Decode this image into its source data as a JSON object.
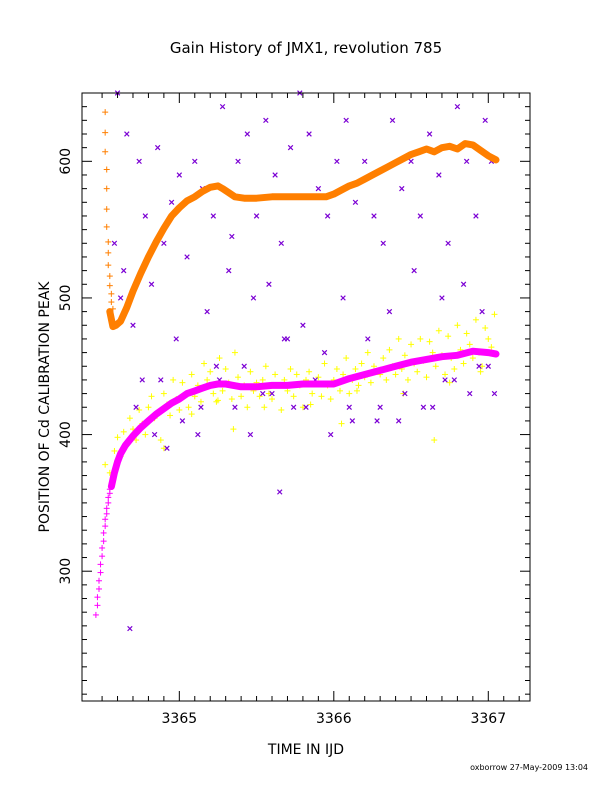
{
  "chart_data": {
    "type": "scatter",
    "title": "Gain History of JMX1, revolution 785",
    "xlabel": "TIME IN IJD",
    "ylabel": "POSITION OF Cd CALIBRATION PEAK",
    "xlim": [
      3364.37,
      3367.27
    ],
    "ylim": [
      205,
      650
    ],
    "xticks": [
      3365,
      3366,
      3367
    ],
    "xtick_labels": [
      "3365",
      "3366",
      "3367"
    ],
    "yticks": [
      300,
      400,
      500,
      600
    ],
    "ytick_labels": [
      "300",
      "400",
      "500",
      "600"
    ],
    "grid": false,
    "legend": "none",
    "colors": {
      "orange": "#ff7f00",
      "magenta": "#ff00ff",
      "yellow": "#ffff00",
      "purple": "#7b00d4",
      "axis": "#000000"
    },
    "series": [
      {
        "marker": "line",
        "color": "#ff7f00",
        "x": [
          3364.55,
          3364.57,
          3364.59,
          3364.62,
          3364.66,
          3364.7,
          3364.75,
          3364.8,
          3364.85,
          3364.9,
          3364.95,
          3365.0,
          3365.05,
          3365.1,
          3365.15,
          3365.2,
          3365.25,
          3365.28,
          3365.32,
          3365.36,
          3365.42,
          3365.5,
          3365.6,
          3365.7,
          3365.8,
          3365.9,
          3365.95,
          3366.0,
          3366.05,
          3366.1,
          3366.15,
          3366.2,
          3366.25,
          3366.3,
          3366.35,
          3366.4,
          3366.45,
          3366.5,
          3366.55,
          3366.6,
          3366.65,
          3366.7,
          3366.75,
          3366.8,
          3366.85,
          3366.9,
          3366.95,
          3367.0,
          3367.05
        ],
        "y": [
          490,
          479,
          480,
          483,
          493,
          505,
          518,
          530,
          541,
          551,
          560,
          566,
          571,
          574,
          578,
          581,
          582,
          580,
          577,
          574,
          573,
          573,
          574,
          574,
          574,
          574,
          574,
          576,
          579,
          582,
          584,
          587,
          590,
          593,
          596,
          599,
          602,
          605,
          607,
          609,
          607,
          610,
          611,
          609,
          613,
          612,
          608,
          604,
          601
        ]
      },
      {
        "marker": "plus",
        "color": "#ff7f00",
        "x": [
          3364.52,
          3364.52,
          3364.52,
          3364.53,
          3364.53,
          3364.53,
          3364.53,
          3364.54,
          3364.54,
          3364.54,
          3364.55,
          3364.55,
          3364.56,
          3364.56,
          3364.57
        ],
        "y": [
          636,
          621,
          607,
          594,
          580,
          565,
          552,
          541,
          533,
          524,
          516,
          509,
          503,
          497,
          492
        ]
      },
      {
        "marker": "line",
        "color": "#ff00ff",
        "x": [
          3364.56,
          3364.58,
          3364.6,
          3364.62,
          3364.65,
          3364.7,
          3364.75,
          3364.8,
          3364.85,
          3364.9,
          3364.95,
          3365.0,
          3365.05,
          3365.1,
          3365.15,
          3365.2,
          3365.25,
          3365.3,
          3365.35,
          3365.4,
          3365.5,
          3365.6,
          3365.7,
          3365.8,
          3365.9,
          3366.0,
          3366.1,
          3366.2,
          3366.3,
          3366.4,
          3366.5,
          3366.6,
          3366.7,
          3366.8,
          3366.9,
          3367.0,
          3367.05
        ],
        "y": [
          362,
          372,
          380,
          386,
          392,
          399,
          405,
          410,
          415,
          419,
          423,
          426,
          430,
          432,
          434,
          436,
          437,
          437,
          436,
          435,
          435,
          436,
          436,
          437,
          437,
          437,
          441,
          444,
          447,
          450,
          453,
          455,
          457,
          458,
          461,
          460,
          459
        ]
      },
      {
        "marker": "plus",
        "color": "#ff00ff",
        "x": [
          3364.46,
          3364.47,
          3364.47,
          3364.48,
          3364.48,
          3364.49,
          3364.49,
          3364.5,
          3364.5,
          3364.51,
          3364.51,
          3364.52,
          3364.52,
          3364.53,
          3364.53,
          3364.54,
          3364.54,
          3364.55,
          3364.55
        ],
        "y": [
          268,
          275,
          281,
          287,
          293,
          299,
          305,
          311,
          317,
          322,
          328,
          333,
          338,
          342,
          346,
          350,
          354,
          357,
          360
        ]
      },
      {
        "marker": "plus",
        "color": "#ffff00",
        "x": [
          3364.52,
          3364.55,
          3364.58,
          3364.6,
          3364.62,
          3364.64,
          3364.66,
          3364.68,
          3364.7,
          3364.72,
          3364.74,
          3364.76,
          3364.78,
          3364.8,
          3364.82,
          3364.84,
          3364.86,
          3364.88,
          3364.9,
          3364.92,
          3364.94,
          3364.96,
          3364.98,
          3365.0,
          3365.02,
          3365.04,
          3365.06,
          3365.08,
          3365.1,
          3365.12,
          3365.14,
          3365.16,
          3365.18,
          3365.2,
          3365.22,
          3365.24,
          3365.26,
          3365.28,
          3365.3,
          3365.32,
          3365.34,
          3365.36,
          3365.38,
          3365.4,
          3365.42,
          3365.44,
          3365.46,
          3365.48,
          3365.5,
          3365.52,
          3365.54,
          3365.56,
          3365.58,
          3365.6,
          3365.62,
          3365.64,
          3365.66,
          3365.68,
          3365.7,
          3365.72,
          3365.74,
          3365.76,
          3365.78,
          3365.8,
          3365.82,
          3365.84,
          3365.86,
          3365.88,
          3365.9,
          3365.92,
          3365.94,
          3365.96,
          3365.98,
          3366.0,
          3366.02,
          3366.04,
          3366.06,
          3366.08,
          3366.1,
          3366.12,
          3366.14,
          3366.16,
          3366.18,
          3366.2,
          3366.22,
          3366.24,
          3366.26,
          3366.28,
          3366.3,
          3366.32,
          3366.34,
          3366.36,
          3366.38,
          3366.4,
          3366.42,
          3366.44,
          3366.46,
          3366.48,
          3366.5,
          3366.52,
          3366.54,
          3366.56,
          3366.58,
          3366.6,
          3366.62,
          3366.64,
          3366.66,
          3366.68,
          3366.7,
          3366.72,
          3366.74,
          3366.76,
          3366.78,
          3366.8,
          3366.82,
          3366.84,
          3366.86,
          3366.88,
          3366.9,
          3366.92,
          3366.94,
          3366.96,
          3366.98,
          3367.0,
          3367.02,
          3367.04,
          3365.08,
          3365.25,
          3365.55,
          3365.85,
          3366.15,
          3366.45,
          3366.75,
          3366.95,
          3364.9,
          3365.35,
          3366.05,
          3366.65
        ],
        "y": [
          378,
          372,
          388,
          398,
          384,
          402,
          394,
          412,
          404,
          396,
          418,
          408,
          400,
          420,
          428,
          412,
          416,
          396,
          430,
          422,
          414,
          440,
          426,
          418,
          438,
          430,
          420,
          444,
          428,
          436,
          424,
          452,
          440,
          446,
          430,
          424,
          456,
          432,
          448,
          438,
          426,
          460,
          442,
          428,
          436,
          420,
          446,
          432,
          438,
          428,
          440,
          450,
          430,
          426,
          444,
          436,
          418,
          440,
          432,
          448,
          428,
          444,
          436,
          420,
          440,
          446,
          430,
          438,
          442,
          428,
          452,
          436,
          426,
          440,
          448,
          432,
          444,
          456,
          430,
          440,
          448,
          436,
          452,
          442,
          460,
          438,
          450,
          446,
          444,
          456,
          440,
          462,
          450,
          444,
          470,
          448,
          458,
          440,
          466,
          452,
          446,
          470,
          454,
          442,
          468,
          460,
          450,
          476,
          458,
          444,
          472,
          456,
          448,
          480,
          462,
          452,
          474,
          466,
          456,
          484,
          460,
          450,
          478,
          470,
          464,
          488,
          415,
          425,
          420,
          422,
          432,
          430,
          438,
          446,
          390,
          404,
          408,
          396
        ]
      },
      {
        "marker": "x",
        "color": "#7b00d4",
        "x": [
          3364.6,
          3364.66,
          3364.74,
          3364.78,
          3364.86,
          3364.9,
          3364.95,
          3365.0,
          3365.05,
          3365.1,
          3365.15,
          3365.22,
          3365.28,
          3365.34,
          3365.38,
          3365.44,
          3365.5,
          3365.56,
          3365.62,
          3365.66,
          3365.72,
          3365.78,
          3365.84,
          3365.9,
          3365.96,
          3366.02,
          3366.08,
          3366.14,
          3366.2,
          3366.26,
          3366.32,
          3366.38,
          3366.44,
          3366.5,
          3366.56,
          3366.62,
          3366.68,
          3366.74,
          3366.8,
          3366.86,
          3366.92,
          3366.98,
          3367.02,
          3364.62,
          3364.7,
          3364.82,
          3364.98,
          3365.18,
          3365.32,
          3365.48,
          3365.58,
          3365.68,
          3365.8,
          3365.94,
          3366.06,
          3366.22,
          3366.36,
          3366.52,
          3366.7,
          3366.84,
          3366.96,
          3364.72,
          3364.88,
          3365.12,
          3365.26,
          3365.42,
          3365.54,
          3365.74,
          3365.88,
          3366.1,
          3366.28,
          3366.46,
          3366.64,
          3366.78,
          3366.94,
          3367.04,
          3364.58,
          3364.64,
          3364.76,
          3364.84,
          3364.92,
          3365.02,
          3365.14,
          3365.24,
          3365.36,
          3365.46,
          3365.6,
          3365.7,
          3365.82,
          3365.98,
          3366.12,
          3366.3,
          3366.42,
          3366.58,
          3366.72,
          3366.88,
          3367.0,
          3364.68,
          3365.65
        ],
        "y": [
          650,
          620,
          600,
          560,
          610,
          540,
          570,
          590,
          530,
          600,
          580,
          560,
          640,
          545,
          600,
          620,
          560,
          630,
          590,
          540,
          610,
          650,
          620,
          580,
          560,
          600,
          630,
          570,
          600,
          560,
          540,
          630,
          580,
          600,
          560,
          620,
          590,
          540,
          640,
          600,
          560,
          630,
          600,
          500,
          480,
          510,
          470,
          490,
          520,
          500,
          510,
          470,
          480,
          460,
          500,
          470,
          490,
          520,
          500,
          510,
          490,
          420,
          440,
          400,
          440,
          450,
          430,
          420,
          440,
          420,
          410,
          430,
          420,
          440,
          450,
          430,
          540,
          520,
          440,
          400,
          390,
          410,
          420,
          450,
          420,
          400,
          430,
          470,
          420,
          400,
          410,
          420,
          410,
          420,
          440,
          430,
          450,
          258,
          358
        ]
      }
    ]
  },
  "footer": "oxborrow 27-May-2009 13:04"
}
